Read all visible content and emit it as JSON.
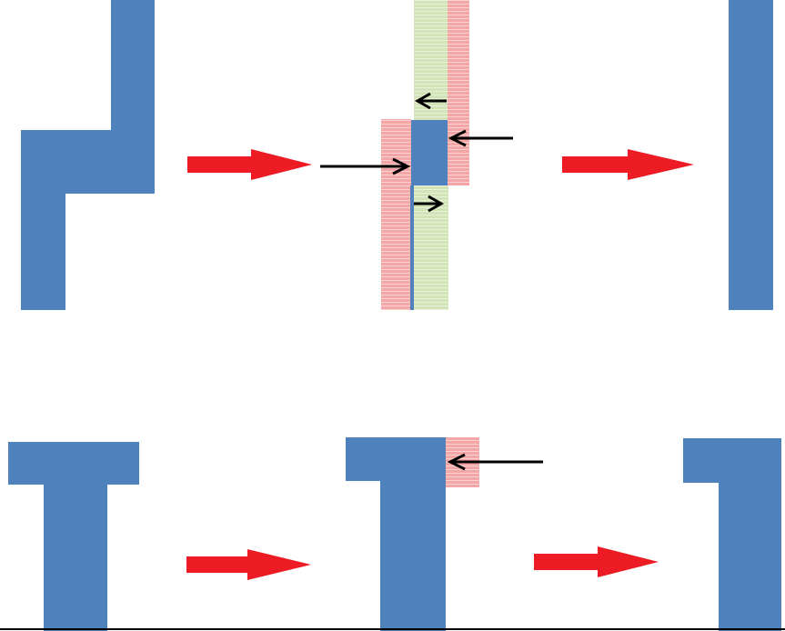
{
  "colors": {
    "shape_blue": "#4f81bd",
    "removed_red": "#f4a6a6",
    "added_green": "#d2e3b8",
    "flow_arrow_red": "#ed1c24",
    "pointer_black": "#000000",
    "background": "#ffffff"
  },
  "rows": [
    {
      "stages": [
        "z-shaped-polygon",
        "shifted-segments",
        "straight-bar"
      ],
      "operation": "offset-and-merge"
    },
    {
      "stages": [
        "t-shaped-polygon",
        "trimmed-notch",
        "l-shaped-polygon"
      ],
      "operation": "notch-trim"
    }
  ]
}
